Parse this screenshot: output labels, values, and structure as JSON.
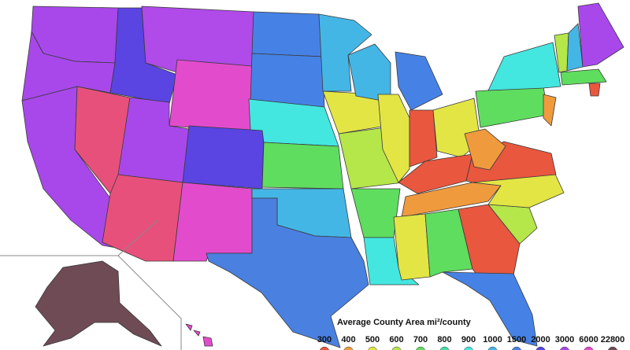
{
  "legend": {
    "title": "Average County Area mi²/county",
    "entries": [
      {
        "label": 300,
        "color": "#e8573e"
      },
      {
        "label": 400,
        "color": "#f09a3e"
      },
      {
        "label": 500,
        "color": "#e3e545"
      },
      {
        "label": 600,
        "color": "#b5e64a"
      },
      {
        "label": 700,
        "color": "#5fdd5f"
      },
      {
        "label": 800,
        "color": "#44dfa6"
      },
      {
        "label": 900,
        "color": "#44e6e0"
      },
      {
        "label": 1000,
        "color": "#44b6e6"
      },
      {
        "label": 1500,
        "color": "#4682e6"
      },
      {
        "label": 2000,
        "color": "#5a44e2"
      },
      {
        "label": 3000,
        "color": "#a848ea"
      },
      {
        "label": 6000,
        "color": "#e24ccc"
      },
      {
        "label": 22800,
        "color": "#6e4b55"
      }
    ]
  }
}
